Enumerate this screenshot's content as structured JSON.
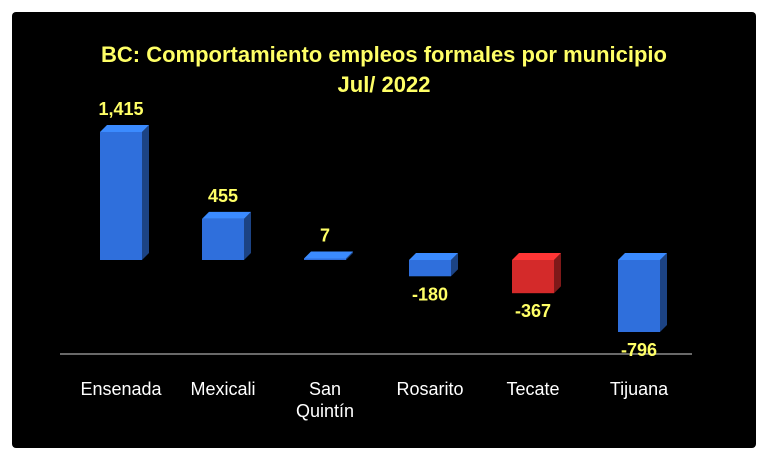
{
  "chart_data": {
    "type": "bar",
    "title_line1": "BC:  Comportamiento empleos formales por municipio",
    "title_line2": "Jul/ 2022",
    "categories": [
      [
        "Ensenada"
      ],
      [
        "Mexicali"
      ],
      [
        "San",
        "Quintín"
      ],
      [
        "Rosarito"
      ],
      [
        "Tecate"
      ],
      [
        "Tijuana"
      ]
    ],
    "values": [
      1415,
      455,
      7,
      -180,
      -367,
      -796
    ],
    "value_labels": [
      "1,415",
      "455",
      "7",
      "-180",
      "-367",
      "-796"
    ],
    "bar_colors": [
      "#2f6fdc",
      "#2f6fdc",
      "#2f6fdc",
      "#2f6fdc",
      "#d42a2a",
      "#2f6fdc"
    ],
    "xlabel": "",
    "ylabel": "",
    "legend": "none",
    "grid": false
  },
  "colors": {
    "background": "#000000",
    "title": "#ffff66",
    "value_labels": "#ffff66",
    "category_labels": "#ffffff",
    "axis_line": "#8c8c8c"
  }
}
